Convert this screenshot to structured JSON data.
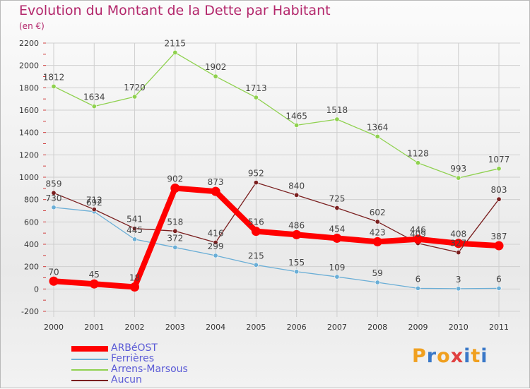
{
  "header": {
    "title": "Evolution du Montant de la Dette par Habitant",
    "unit": "(en €)"
  },
  "logo": {
    "text": "Proxiti",
    "letters": [
      "P",
      "r",
      "o",
      "x",
      "i",
      "t",
      "i"
    ]
  },
  "colors": {
    "title": "#b3266b",
    "grid": "#cfcfcf",
    "tick_text": "#333333",
    "legend_text": "#5a5ad6",
    "ARBéOST": "#ff0000",
    "Ferrières": "#6aaed6",
    "Arrens-Marsous": "#8fd14f",
    "Aucun": "#7a1f1f",
    "logo": [
      "#f0a020",
      "#3a78c8",
      "#f0a020",
      "#e04040",
      "#3a78c8",
      "#f0a020",
      "#3a78c8"
    ]
  },
  "chart_data": {
    "type": "line",
    "title": "Evolution du Montant de la Dette par Habitant",
    "ylabel": "(en €)",
    "xlabel": "",
    "x": [
      "2000",
      "2001",
      "2002",
      "2003",
      "2004",
      "2005",
      "2006",
      "2007",
      "2008",
      "2009",
      "2010",
      "2011"
    ],
    "ylim": [
      -200,
      2200
    ],
    "yticks": [
      -200,
      0,
      200,
      400,
      600,
      800,
      1000,
      1200,
      1400,
      1600,
      1800,
      2000,
      2200
    ],
    "grid": true,
    "legend_position": "bottom-left",
    "series": [
      {
        "name": "ARBéOST",
        "values": [
          70,
          45,
          18,
          902,
          873,
          516,
          486,
          454,
          423,
          446,
          408,
          387
        ],
        "labels": [
          "70",
          "45",
          "18",
          "902",
          "873",
          "516",
          "486",
          "454",
          "423",
          "446",
          "408",
          "387"
        ]
      },
      {
        "name": "Ferrières",
        "values": [
          730,
          692,
          445,
          372,
          299,
          215,
          155,
          109,
          59,
          6,
          3,
          6
        ],
        "labels": [
          "730",
          "692",
          "445",
          "372",
          "299",
          "215",
          "155",
          "109",
          "59",
          "6",
          "3",
          "6"
        ]
      },
      {
        "name": "Arrens-Marsous",
        "values": [
          1812,
          1634,
          1720,
          2115,
          1902,
          1713,
          1465,
          1518,
          1364,
          1128,
          993,
          1077
        ],
        "labels": [
          "1812",
          "1634",
          "1720",
          "2115",
          "1902",
          "1713",
          "1465",
          "1518",
          "1364",
          "1128",
          "993",
          "1077"
        ]
      },
      {
        "name": "Aucun",
        "values": [
          859,
          712,
          541,
          518,
          416,
          952,
          840,
          725,
          602,
          409,
          327,
          803
        ],
        "labels": [
          "859",
          "712",
          "541",
          "518",
          "416",
          "952",
          "840",
          "725",
          "602",
          "409",
          "327",
          "803"
        ]
      }
    ]
  }
}
